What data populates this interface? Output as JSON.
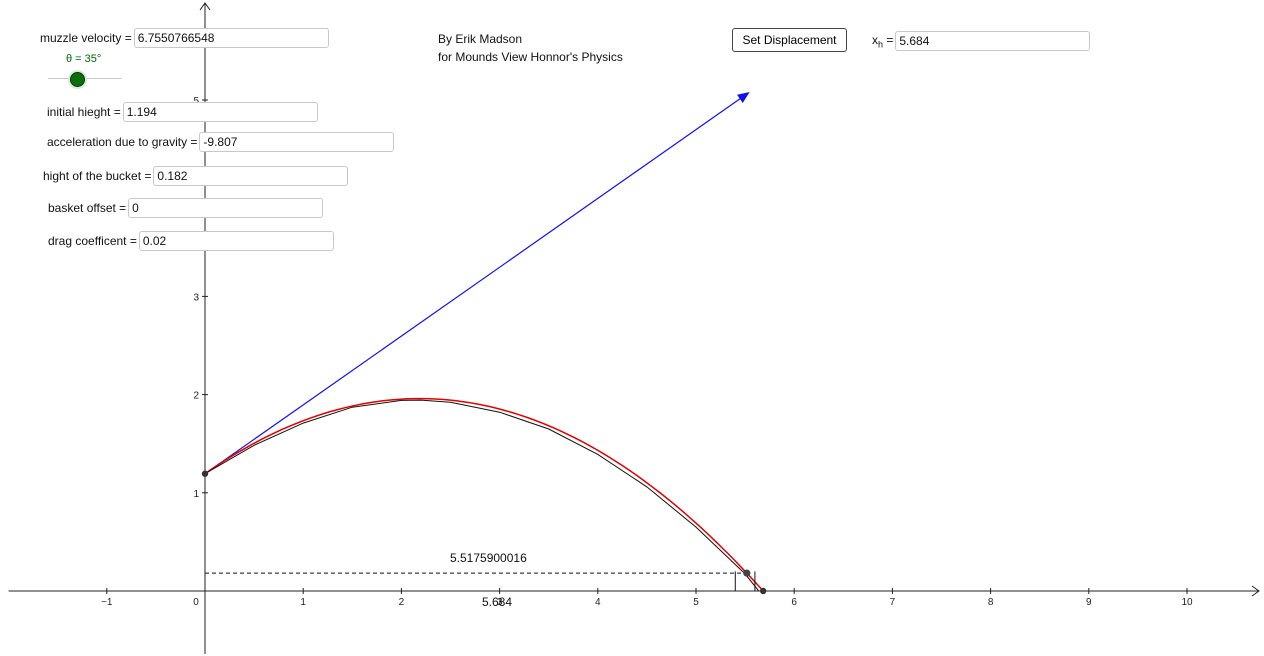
{
  "controls": {
    "muzzle_velocity": {
      "label": "muzzle velocity =",
      "value": "6.7550766548"
    },
    "theta": {
      "label": "θ = 35°"
    },
    "initial_height": {
      "label": "initial hieght =",
      "value": "1.194"
    },
    "gravity": {
      "label": "acceleration due to gravity =",
      "value": "-9.807"
    },
    "bucket_height": {
      "label": "hight of the bucket =",
      "value": "0.182"
    },
    "basket_offset": {
      "label": "basket offset =",
      "value": "0"
    },
    "drag": {
      "label": "drag coefficent =",
      "value": "0.02"
    }
  },
  "credit": {
    "line1": "By Erik Madson",
    "line2": "for Mounds View Honnor's Physics"
  },
  "set_button": {
    "label": "Set Displacement"
  },
  "xh": {
    "label_base": "x",
    "label_sub": "h",
    "label_eq": " =",
    "value": "5.684"
  },
  "annotations": {
    "horizontal_distance": "5.5175900016",
    "landing_x": "5.684"
  },
  "colors": {
    "vector": "#1010ee",
    "drag_path": "#111111",
    "ideal_path": "#e00000",
    "slider": "#0a6e0a"
  },
  "chart_data": {
    "type": "line",
    "x_ticks": [
      -1,
      1,
      2,
      3,
      4,
      5,
      6,
      7,
      8,
      9,
      10
    ],
    "y_ticks": [
      1,
      2,
      3,
      5
    ],
    "origin_label": "0",
    "xlim": [
      -2,
      10.7
    ],
    "ylim": [
      -0.6,
      6
    ],
    "launch": {
      "x": 0,
      "y": 1.194,
      "angle_deg": 35,
      "speed": 6.7550766548,
      "g": 9.807
    },
    "vector_end": {
      "x": 5.53,
      "y": 5.07
    },
    "series": [
      {
        "x": [
          0,
          0.5,
          1,
          1.5,
          2,
          2.2,
          2.5,
          3,
          3.5,
          4,
          4.5,
          5,
          5.5,
          5.64
        ],
        "y": [
          1.194,
          1.484,
          1.71,
          1.872,
          1.941,
          1.944,
          1.922,
          1.821,
          1.65,
          1.391,
          1.06,
          0.651,
          0.174,
          0.0
        ]
      }
    ],
    "ideal_landing_x": 5.684,
    "bucket_point": {
      "x": 5.5176,
      "y": 0.182
    },
    "landing_point": {
      "x": 5.684,
      "y": 0
    }
  }
}
